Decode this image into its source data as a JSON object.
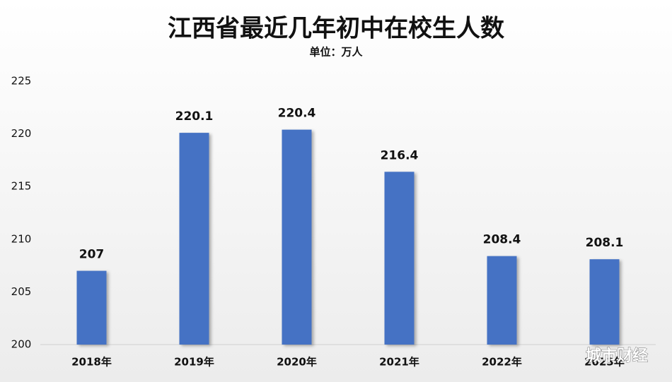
{
  "chart_data": {
    "type": "bar",
    "title": "江西省最近几年初中在校生人数",
    "subtitle": "单位：万人",
    "categories": [
      "2018年",
      "2019年",
      "2020年",
      "2021年",
      "2022年",
      "2023年"
    ],
    "values": [
      207,
      220.1,
      220.4,
      216.4,
      208.4,
      208.1
    ],
    "color": "#4472c4",
    "ylim": [
      200,
      225
    ],
    "yticks": [
      200,
      205,
      210,
      215,
      220,
      225
    ],
    "grid": false,
    "watermark": "城市财经"
  }
}
